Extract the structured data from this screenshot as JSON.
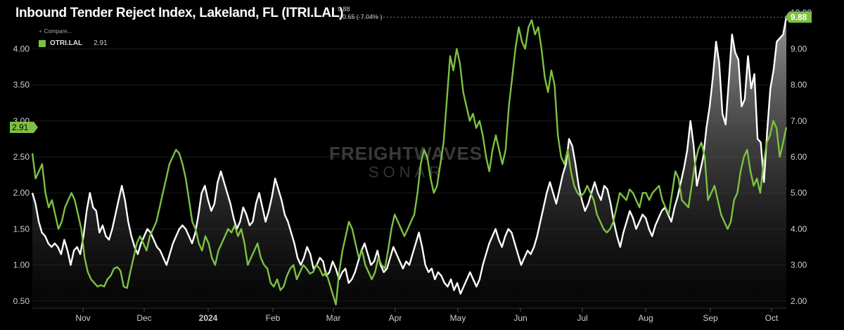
{
  "header": {
    "title": "Inbound Tender Reject Index, Lakeland, FL (ITRI.LAL)",
    "last_value": "9.88",
    "change_text": "0.65 ( 7.04% )",
    "change_arrow": "up-arrow-icon"
  },
  "legend": {
    "compare_label": "Compare...",
    "compare_icon": "plus-icon",
    "series_name": "OTRI.LAL",
    "series_value": "2.91"
  },
  "watermark": {
    "line1": "FREIGHTWAVES",
    "line2": "SONAR"
  },
  "colors": {
    "background": "#000000",
    "white_series": "#ffffff",
    "green_series": "#7dc142",
    "grid": "#1c1c1c"
  },
  "chart_data": {
    "type": "line",
    "x_labels": [
      "Nov",
      "Dec",
      "2024",
      "Feb",
      "Mar",
      "Apr",
      "May",
      "Jun",
      "Jul",
      "Aug",
      "Sep",
      "Oct"
    ],
    "left_axis": {
      "ticks": [
        "0.50",
        "1.00",
        "1.50",
        "2.00",
        "2.50",
        "3.00",
        "3.50",
        "4.00"
      ],
      "ylim": [
        0.4,
        4.6
      ]
    },
    "right_axis": {
      "ticks": [
        "2.00",
        "3.00",
        "4.00",
        "5.00",
        "6.00",
        "7.00",
        "8.00",
        "9.00",
        "10.00"
      ],
      "ylim": [
        1.8,
        10.2
      ]
    },
    "badges": {
      "left": "2.91",
      "right": "9.88"
    },
    "series": [
      {
        "name": "ITRI.LAL",
        "axis": "right",
        "color": "#ffffff",
        "area": true,
        "values": [
          5.0,
          4.7,
          4.2,
          3.9,
          3.8,
          3.6,
          3.5,
          3.6,
          3.5,
          3.3,
          3.7,
          3.4,
          3.0,
          3.4,
          3.5,
          3.3,
          3.8,
          4.5,
          5.0,
          4.6,
          4.5,
          3.9,
          4.1,
          3.8,
          3.7,
          4.0,
          4.4,
          4.8,
          5.2,
          4.8,
          4.2,
          3.8,
          3.5,
          3.3,
          3.6,
          3.8,
          4.0,
          3.9,
          3.7,
          3.5,
          3.4,
          3.2,
          3.0,
          3.3,
          3.6,
          3.8,
          4.0,
          4.1,
          4.0,
          3.8,
          3.6,
          3.9,
          4.4,
          5.0,
          5.2,
          4.8,
          4.5,
          4.7,
          5.3,
          5.6,
          5.3,
          5.0,
          4.7,
          4.3,
          4.0,
          4.2,
          4.6,
          4.4,
          4.1,
          4.2,
          4.7,
          5.0,
          4.6,
          4.2,
          4.5,
          4.9,
          5.4,
          5.1,
          4.8,
          4.4,
          4.2,
          3.9,
          3.6,
          3.2,
          3.0,
          3.2,
          3.5,
          3.3,
          2.9,
          3.0,
          3.2,
          3.1,
          2.7,
          2.8,
          3.1,
          2.9,
          2.6,
          2.8,
          2.9,
          2.5,
          2.6,
          2.8,
          3.1,
          3.4,
          3.6,
          3.3,
          3.0,
          3.1,
          3.4,
          3.0,
          2.8,
          2.9,
          3.2,
          3.5,
          3.3,
          3.1,
          2.9,
          3.1,
          3.0,
          3.3,
          3.6,
          3.9,
          3.5,
          3.0,
          2.8,
          2.9,
          2.6,
          2.8,
          2.7,
          2.5,
          2.4,
          2.6,
          2.3,
          2.5,
          2.2,
          2.4,
          2.6,
          2.8,
          2.6,
          2.4,
          2.6,
          3.0,
          3.3,
          3.6,
          3.8,
          4.0,
          3.7,
          3.5,
          3.8,
          4.0,
          3.9,
          3.6,
          3.3,
          3.0,
          3.2,
          3.4,
          3.3,
          3.5,
          3.8,
          4.2,
          4.6,
          5.0,
          5.3,
          5.0,
          4.7,
          5.1,
          5.5,
          5.8,
          6.5,
          6.3,
          5.8,
          5.2,
          4.8,
          4.5,
          4.7,
          5.0,
          5.3,
          5.0,
          4.8,
          5.2,
          5.1,
          4.7,
          4.2,
          3.8,
          3.5,
          3.9,
          4.2,
          4.5,
          4.3,
          4.0,
          4.2,
          4.4,
          4.3,
          4.0,
          3.8,
          4.1,
          4.3,
          4.5,
          4.6,
          4.4,
          4.2,
          4.6,
          4.9,
          5.3,
          5.7,
          6.2,
          7.0,
          6.3,
          5.2,
          5.6,
          6.0,
          6.8,
          7.4,
          8.2,
          9.2,
          8.6,
          7.2,
          6.9,
          8.1,
          9.4,
          8.9,
          8.7,
          7.4,
          7.6,
          8.8,
          7.9,
          8.3,
          6.5,
          6.4,
          5.3,
          6.7,
          7.9,
          8.4,
          9.2,
          9.3,
          9.4,
          9.88
        ]
      },
      {
        "name": "OTRI.LAL",
        "axis": "left",
        "color": "#7dc142",
        "area": false,
        "values": [
          2.55,
          2.2,
          2.3,
          2.4,
          2.0,
          1.8,
          1.9,
          1.7,
          1.5,
          1.6,
          1.8,
          1.9,
          2.0,
          1.9,
          1.7,
          1.5,
          1.1,
          0.9,
          0.8,
          0.75,
          0.7,
          0.72,
          0.7,
          0.8,
          0.85,
          0.95,
          0.97,
          0.92,
          0.7,
          0.68,
          0.9,
          1.1,
          1.3,
          1.4,
          1.3,
          1.2,
          1.4,
          1.5,
          1.6,
          1.8,
          2.0,
          2.2,
          2.4,
          2.5,
          2.6,
          2.55,
          2.4,
          2.2,
          1.9,
          1.6,
          1.5,
          1.3,
          1.2,
          1.4,
          1.3,
          1.1,
          1.0,
          1.2,
          1.3,
          1.4,
          1.5,
          1.45,
          1.55,
          1.4,
          1.5,
          1.3,
          1.0,
          1.1,
          1.2,
          1.3,
          1.1,
          1.0,
          0.95,
          0.75,
          0.7,
          0.8,
          0.65,
          0.7,
          0.85,
          0.95,
          1.0,
          0.8,
          0.9,
          1.0,
          0.95,
          0.88,
          0.9,
          1.0,
          0.95,
          0.85,
          0.9,
          0.75,
          0.6,
          0.45,
          0.9,
          1.2,
          1.4,
          1.6,
          1.5,
          1.3,
          1.1,
          1.2,
          1.0,
          0.9,
          0.8,
          0.9,
          1.1,
          1.0,
          0.95,
          1.2,
          1.5,
          1.7,
          1.6,
          1.5,
          1.4,
          1.5,
          1.6,
          1.7,
          2.0,
          2.4,
          2.6,
          2.5,
          2.2,
          2.0,
          2.1,
          2.4,
          2.7,
          3.3,
          3.9,
          3.7,
          4.0,
          3.8,
          3.4,
          3.2,
          3.0,
          3.1,
          2.9,
          3.0,
          2.8,
          2.5,
          2.3,
          2.6,
          2.8,
          2.6,
          2.4,
          2.6,
          3.2,
          3.6,
          4.0,
          4.3,
          4.1,
          4.0,
          4.3,
          4.4,
          4.2,
          4.3,
          4.0,
          3.6,
          3.4,
          3.7,
          3.5,
          2.8,
          2.5,
          2.4,
          2.6,
          2.3,
          2.1,
          2.0,
          1.95,
          2.0,
          2.1,
          2.0,
          1.9,
          1.7,
          1.6,
          1.5,
          1.45,
          1.5,
          1.6,
          1.8,
          2.0,
          1.95,
          1.9,
          2.05,
          2.0,
          1.9,
          1.8,
          2.0,
          2.0,
          1.9,
          2.0,
          2.05,
          2.1,
          1.9,
          1.8,
          1.7,
          2.0,
          2.3,
          2.2,
          1.9,
          1.85,
          1.8,
          2.1,
          2.4,
          2.6,
          2.7,
          2.5,
          1.9,
          2.0,
          2.1,
          1.9,
          1.7,
          1.6,
          1.5,
          1.6,
          1.9,
          2.0,
          2.3,
          2.5,
          2.6,
          2.3,
          2.1,
          2.2,
          2.0,
          2.4,
          2.7,
          2.8,
          3.0,
          2.9,
          2.5,
          2.7,
          2.91
        ]
      }
    ]
  }
}
